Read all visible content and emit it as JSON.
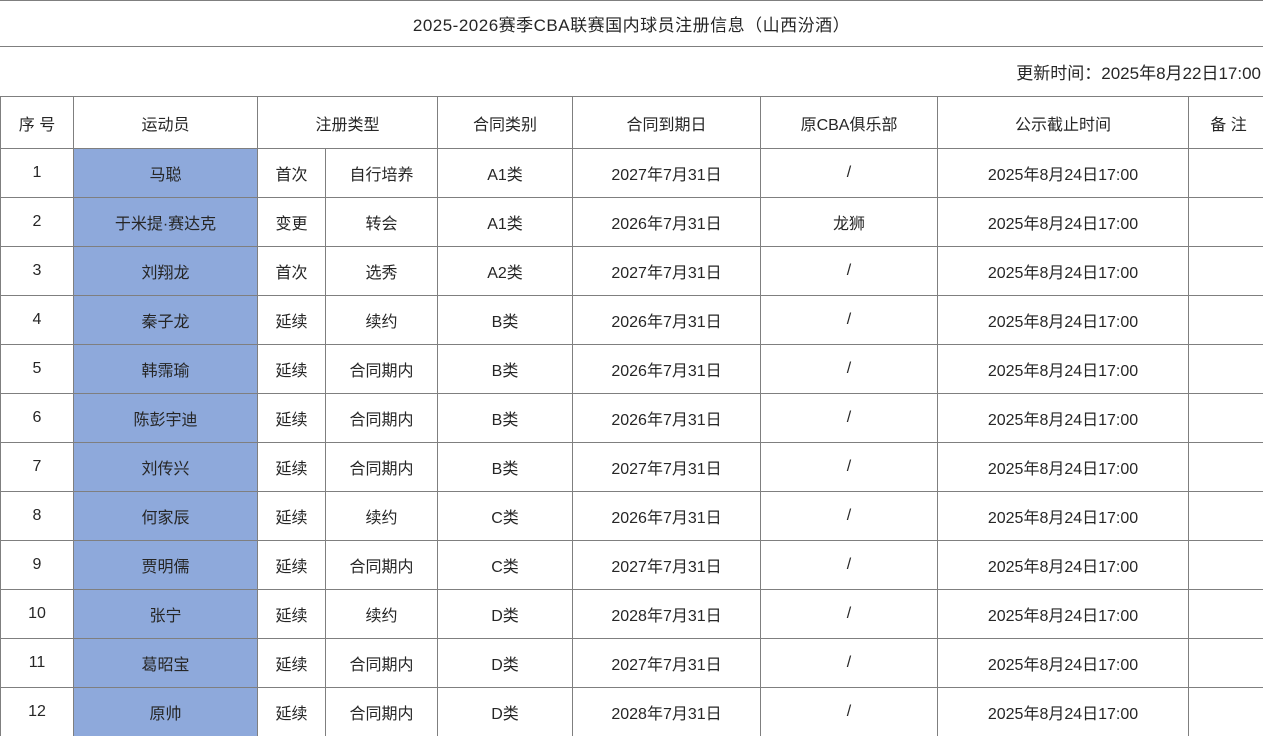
{
  "title": "2025-2026赛季CBA联赛国内球员注册信息（山西汾酒）",
  "update_time": "更新时间：2025年8月22日17:00",
  "colors": {
    "player_highlight": "#8EA9DB",
    "border": "#7f7f7f",
    "text": "#262626",
    "background": "#ffffff"
  },
  "table": {
    "headers": {
      "no": "序 号",
      "player": "运动员",
      "reg_type": "注册类型",
      "contract_class": "合同类别",
      "contract_expiry": "合同到期日",
      "former_club": "原CBA俱乐部",
      "publicity_deadline": "公示截止时间",
      "remark": "备 注"
    },
    "rows": [
      {
        "no": "1",
        "player": "马聪",
        "reg_type": "首次",
        "reg_method": "自行培养",
        "contract_class": "A1类",
        "contract_expiry": "2027年7月31日",
        "former_club": "/",
        "publicity_deadline": "2025年8月24日17:00",
        "remark": ""
      },
      {
        "no": "2",
        "player": "于米提·赛达克",
        "reg_type": "变更",
        "reg_method": "转会",
        "contract_class": "A1类",
        "contract_expiry": "2026年7月31日",
        "former_club": "龙狮",
        "publicity_deadline": "2025年8月24日17:00",
        "remark": ""
      },
      {
        "no": "3",
        "player": "刘翔龙",
        "reg_type": "首次",
        "reg_method": "选秀",
        "contract_class": "A2类",
        "contract_expiry": "2027年7月31日",
        "former_club": "/",
        "publicity_deadline": "2025年8月24日17:00",
        "remark": ""
      },
      {
        "no": "4",
        "player": "秦子龙",
        "reg_type": "延续",
        "reg_method": "续约",
        "contract_class": "B类",
        "contract_expiry": "2026年7月31日",
        "former_club": "/",
        "publicity_deadline": "2025年8月24日17:00",
        "remark": ""
      },
      {
        "no": "5",
        "player": "韩霈瑜",
        "reg_type": "延续",
        "reg_method": "合同期内",
        "contract_class": "B类",
        "contract_expiry": "2026年7月31日",
        "former_club": "/",
        "publicity_deadline": "2025年8月24日17:00",
        "remark": ""
      },
      {
        "no": "6",
        "player": "陈彭宇迪",
        "reg_type": "延续",
        "reg_method": "合同期内",
        "contract_class": "B类",
        "contract_expiry": "2026年7月31日",
        "former_club": "/",
        "publicity_deadline": "2025年8月24日17:00",
        "remark": ""
      },
      {
        "no": "7",
        "player": "刘传兴",
        "reg_type": "延续",
        "reg_method": "合同期内",
        "contract_class": "B类",
        "contract_expiry": "2027年7月31日",
        "former_club": "/",
        "publicity_deadline": "2025年8月24日17:00",
        "remark": ""
      },
      {
        "no": "8",
        "player": "何家辰",
        "reg_type": "延续",
        "reg_method": "续约",
        "contract_class": "C类",
        "contract_expiry": "2026年7月31日",
        "former_club": "/",
        "publicity_deadline": "2025年8月24日17:00",
        "remark": ""
      },
      {
        "no": "9",
        "player": "贾明儒",
        "reg_type": "延续",
        "reg_method": "合同期内",
        "contract_class": "C类",
        "contract_expiry": "2027年7月31日",
        "former_club": "/",
        "publicity_deadline": "2025年8月24日17:00",
        "remark": ""
      },
      {
        "no": "10",
        "player": "张宁",
        "reg_type": "延续",
        "reg_method": "续约",
        "contract_class": "D类",
        "contract_expiry": "2028年7月31日",
        "former_club": "/",
        "publicity_deadline": "2025年8月24日17:00",
        "remark": ""
      },
      {
        "no": "11",
        "player": "葛昭宝",
        "reg_type": "延续",
        "reg_method": "合同期内",
        "contract_class": "D类",
        "contract_expiry": "2027年7月31日",
        "former_club": "/",
        "publicity_deadline": "2025年8月24日17:00",
        "remark": ""
      },
      {
        "no": "12",
        "player": "原帅",
        "reg_type": "延续",
        "reg_method": "合同期内",
        "contract_class": "D类",
        "contract_expiry": "2028年7月31日",
        "former_club": "/",
        "publicity_deadline": "2025年8月24日17:00",
        "remark": ""
      }
    ]
  }
}
